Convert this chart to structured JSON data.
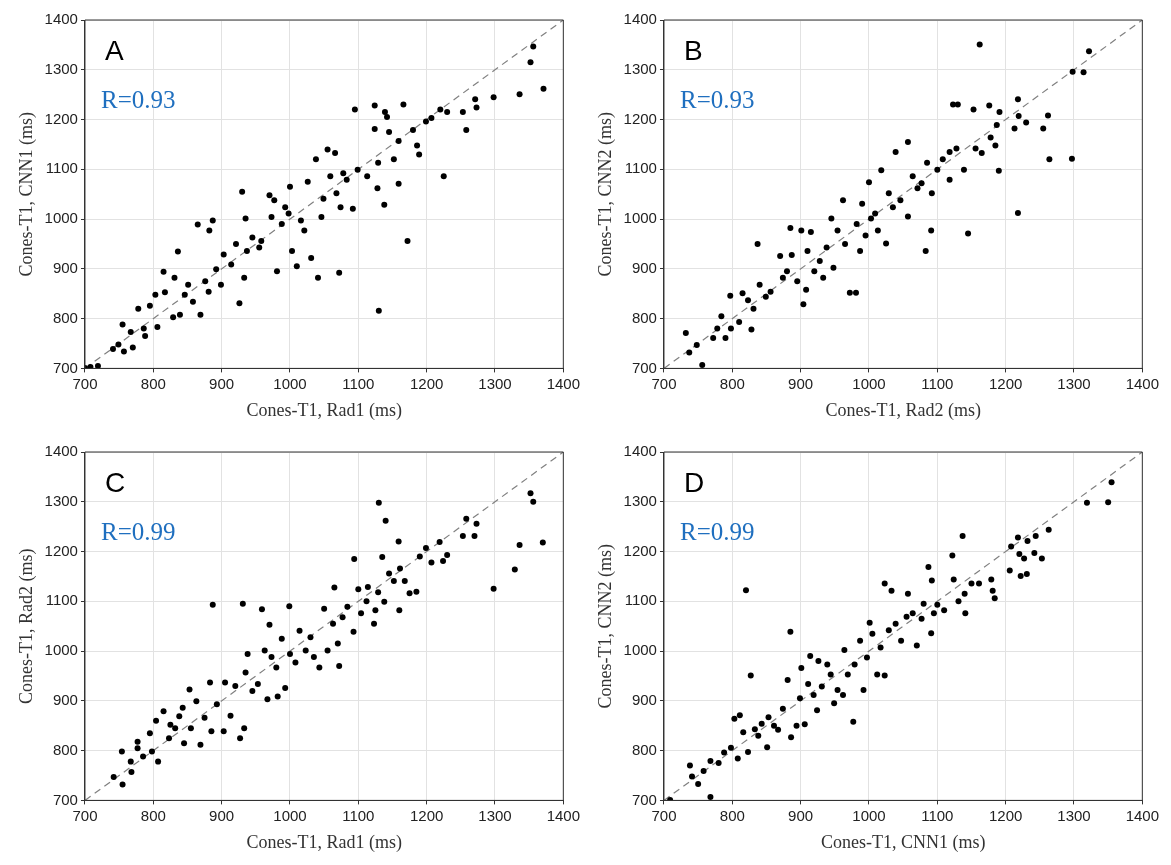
{
  "chart_data": [
    {
      "type": "scatter",
      "xlabel": "Cones-T1, Rad1 (ms)",
      "ylabel": "Cones-T1, CNN1 (ms)",
      "annotations": [
        "A",
        "R=0.93"
      ],
      "xlim": [
        700,
        1400
      ],
      "ylim": [
        700,
        1400
      ],
      "xticks": [
        700,
        800,
        900,
        1000,
        1100,
        1200,
        1300,
        1400
      ],
      "yticks": [
        700,
        800,
        900,
        1000,
        1100,
        1200,
        1300,
        1400
      ],
      "grid": true,
      "series": [
        {
          "color": "#000000",
          "marker": "circle",
          "x": [
            700,
            708,
            719,
            741,
            749,
            757,
            770,
            755,
            767,
            778,
            786,
            788,
            795,
            806,
            803,
            815,
            817,
            829,
            836,
            839,
            831,
            846,
            851,
            858,
            865,
            869,
            882,
            887,
            876,
            881,
            892,
            899,
            903,
            914,
            921,
            926,
            930,
            933,
            935,
            937,
            945,
            955,
            958,
            970,
            973,
            977,
            981,
            988,
            993,
            998,
            1000,
            1003,
            1010,
            1016,
            1021,
            1026,
            1031,
            1038,
            1041,
            1046,
            1049,
            1055,
            1059,
            1066,
            1068,
            1072,
            1074,
            1078,
            1083,
            1092,
            1095,
            1099,
            1113,
            1124,
            1124,
            1128,
            1130,
            1129,
            1138,
            1139,
            1142,
            1145,
            1152,
            1159,
            1159,
            1166,
            1172,
            1180,
            1186,
            1189,
            1199,
            1207,
            1220,
            1225,
            1230,
            1253,
            1258,
            1271,
            1273,
            1298,
            1336,
            1356,
            1352,
            1371
          ],
          "values": [
            701,
            703,
            705,
            739,
            748,
            734,
            742,
            788,
            773,
            820,
            780,
            765,
            826,
            783,
            848,
            894,
            853,
            803,
            935,
            808,
            882,
            848,
            868,
            834,
            989,
            808,
            977,
            997,
            875,
            854,
            899,
            868,
            929,
            909,
            950,
            831,
            1055,
            882,
            1001,
            936,
            963,
            943,
            956,
            1048,
            1004,
            1038,
            895,
            990,
            1024,
            1011,
            1065,
            936,
            905,
            997,
            977,
            1075,
            922,
            1120,
            882,
            1004,
            1041,
            1140,
            1086,
            1133,
            1052,
            892,
            1024,
            1092,
            1079,
            1021,
            1220,
            1099,
            1086,
            1228,
            1181,
            1062,
            816,
            1113,
            1029,
            1215,
            1205,
            1175,
            1120,
            1071,
            1157,
            1230,
            956,
            1179,
            1148,
            1130,
            1196,
            1203,
            1220,
            1086,
            1215,
            1215,
            1179,
            1241,
            1224,
            1245,
            1251,
            1347,
            1315,
            1262
          ]
        },
        {
          "type": "line",
          "color": "#808080",
          "marker": "none",
          "line_style": "dashed",
          "x": [
            700,
            1400
          ],
          "values": [
            700,
            1400
          ]
        }
      ]
    },
    {
      "type": "scatter",
      "xlabel": "Cones-T1, Rad2 (ms)",
      "ylabel": "Cones-T1, CNN2 (ms)",
      "annotations": [
        "B",
        "R=0.93"
      ],
      "xlim": [
        700,
        1400
      ],
      "ylim": [
        700,
        1400
      ],
      "xticks": [
        700,
        800,
        900,
        1000,
        1100,
        1200,
        1300,
        1400
      ],
      "yticks": [
        700,
        800,
        900,
        1000,
        1100,
        1200,
        1300,
        1400
      ],
      "grid": true,
      "series": [
        {
          "color": "#000000",
          "marker": "circle",
          "x": [
            732,
            737,
            748,
            756,
            772,
            778,
            784,
            790,
            797,
            798,
            810,
            815,
            823,
            828,
            831,
            837,
            840,
            849,
            856,
            870,
            874,
            880,
            885,
            887,
            895,
            901,
            904,
            908,
            910,
            915,
            920,
            928,
            933,
            938,
            945,
            948,
            954,
            962,
            965,
            972,
            981,
            982,
            987,
            990,
            995,
            1000,
            1003,
            1009,
            1013,
            1018,
            1025,
            1029,
            1035,
            1039,
            1046,
            1057,
            1057,
            1064,
            1071,
            1077,
            1083,
            1085,
            1091,
            1092,
            1100,
            1108,
            1118,
            1118,
            1123,
            1130,
            1128,
            1139,
            1145,
            1153,
            1156,
            1162,
            1165,
            1176,
            1178,
            1185,
            1187,
            1190,
            1191,
            1213,
            1218,
            1218,
            1219,
            1230,
            1255,
            1262,
            1264,
            1297,
            1298,
            1314,
            1322
          ],
          "values": [
            771,
            732,
            747,
            707,
            761,
            780,
            805,
            761,
            846,
            780,
            793,
            851,
            837,
            778,
            820,
            950,
            868,
            844,
            854,
            926,
            882,
            895,
            982,
            928,
            875,
            977,
            829,
            858,
            936,
            974,
            895,
            916,
            882,
            943,
            1001,
            902,
            977,
            1038,
            950,
            852,
            852,
            990,
            936,
            1031,
            967,
            1074,
            1001,
            1011,
            977,
            1098,
            951,
            1052,
            1024,
            1135,
            1038,
            1155,
            1005,
            1086,
            1062,
            1072,
            936,
            1113,
            977,
            1052,
            1099,
            1120,
            1135,
            1079,
            1230,
            1230,
            1142,
            1099,
            971,
            1220,
            1142,
            1351,
            1133,
            1228,
            1164,
            1148,
            1189,
            1097,
            1215,
            1182,
            1241,
            1012,
            1207,
            1194,
            1182,
            1208,
            1120,
            1121,
            1296,
            1295,
            1337
          ]
        },
        {
          "type": "line",
          "color": "#808080",
          "marker": "none",
          "line_style": "dashed",
          "x": [
            700,
            1400
          ],
          "values": [
            700,
            1400
          ]
        }
      ]
    },
    {
      "type": "scatter",
      "xlabel": "Cones-T1, Rad1 (ms)",
      "ylabel": "Cones-T1, Rad2 (ms)",
      "annotations": [
        "C",
        "R=0.99"
      ],
      "xlim": [
        700,
        1400
      ],
      "ylim": [
        700,
        1400
      ],
      "xticks": [
        700,
        800,
        900,
        1000,
        1100,
        1200,
        1300,
        1400
      ],
      "yticks": [
        700,
        800,
        900,
        1000,
        1100,
        1200,
        1300,
        1400
      ],
      "grid": true,
      "series": [
        {
          "color": "#000000",
          "marker": "circle",
          "x": [
            742,
            755,
            754,
            768,
            767,
            777,
            777,
            785,
            795,
            798,
            807,
            804,
            815,
            823,
            825,
            832,
            838,
            843,
            845,
            853,
            855,
            863,
            869,
            875,
            883,
            887,
            885,
            893,
            903,
            905,
            913,
            920,
            927,
            931,
            933,
            935,
            938,
            945,
            953,
            959,
            963,
            967,
            970,
            973,
            980,
            982,
            988,
            993,
            999,
            1000,
            1008,
            1014,
            1023,
            1030,
            1035,
            1043,
            1050,
            1055,
            1063,
            1065,
            1070,
            1072,
            1077,
            1084,
            1093,
            1094,
            1100,
            1104,
            1112,
            1114,
            1123,
            1125,
            1129,
            1130,
            1135,
            1138,
            1140,
            1145,
            1152,
            1159,
            1160,
            1161,
            1168,
            1175,
            1185,
            1190,
            1199,
            1207,
            1219,
            1224,
            1230,
            1253,
            1258,
            1270,
            1273,
            1298,
            1329,
            1336,
            1352,
            1356,
            1370
          ],
          "values": [
            747,
            732,
            798,
            757,
            778,
            818,
            805,
            788,
            835,
            798,
            778,
            860,
            879,
            825,
            852,
            845,
            869,
            886,
            815,
            923,
            845,
            899,
            812,
            866,
            937,
            1093,
            839,
            893,
            839,
            937,
            870,
            930,
            825,
            1095,
            845,
            957,
            994,
            920,
            934,
            1084,
            1001,
            903,
            1053,
            988,
            967,
            909,
            1025,
            926,
            1090,
            994,
            977,
            1041,
            1001,
            1028,
            988,
            967,
            1085,
            1001,
            1055,
            1128,
            1015,
            970,
            1068,
            1089,
            1039,
            1185,
            1124,
            1076,
            1100,
            1129,
            1055,
            1082,
            1118,
            1298,
            1189,
            1099,
            1262,
            1156,
            1141,
            1220,
            1082,
            1166,
            1141,
            1116,
            1119,
            1190,
            1207,
            1178,
            1219,
            1181,
            1193,
            1231,
            1266,
            1231,
            1256,
            1125,
            1164,
            1213,
            1317,
            1300,
            1218
          ]
        },
        {
          "type": "line",
          "color": "#808080",
          "marker": "none",
          "line_style": "dashed",
          "x": [
            700,
            1400
          ],
          "values": [
            700,
            1400
          ]
        }
      ]
    },
    {
      "type": "scatter",
      "xlabel": "Cones-T1, CNN1 (ms)",
      "ylabel": "Cones-T1, CNN2 (ms)",
      "annotations": [
        "D",
        "R=0.99"
      ],
      "xlim": [
        700,
        1400
      ],
      "ylim": [
        700,
        1400
      ],
      "xticks": [
        700,
        800,
        900,
        1000,
        1100,
        1200,
        1300,
        1400
      ],
      "yticks": [
        700,
        800,
        900,
        1000,
        1100,
        1200,
        1300,
        1400
      ],
      "grid": true,
      "series": [
        {
          "color": "#000000",
          "marker": "circle",
          "x": [
            709,
            738,
            741,
            750,
            758,
            768,
            768,
            780,
            788,
            798,
            803,
            808,
            811,
            816,
            820,
            823,
            827,
            833,
            838,
            843,
            851,
            853,
            861,
            867,
            874,
            881,
            885,
            886,
            894,
            899,
            901,
            906,
            911,
            914,
            919,
            924,
            926,
            931,
            939,
            944,
            949,
            954,
            964,
            962,
            969,
            977,
            979,
            987,
            992,
            997,
            1001,
            1005,
            1012,
            1017,
            1023,
            1023,
            1029,
            1033,
            1039,
            1047,
            1055,
            1057,
            1064,
            1070,
            1077,
            1080,
            1087,
            1091,
            1092,
            1095,
            1100,
            1110,
            1122,
            1124,
            1131,
            1137,
            1140,
            1141,
            1150,
            1161,
            1179,
            1181,
            1184,
            1206,
            1208,
            1218,
            1220,
            1222,
            1227,
            1232,
            1231,
            1242,
            1244,
            1253,
            1263,
            1319,
            1350,
            1355
          ],
          "values": [
            701,
            770,
            748,
            733,
            759,
            707,
            779,
            775,
            796,
            806,
            864,
            784,
            871,
            837,
            1122,
            797,
            951,
            843,
            830,
            854,
            807,
            867,
            850,
            842,
            884,
            942,
            1039,
            827,
            850,
            905,
            966,
            853,
            934,
            990,
            912,
            881,
            980,
            929,
            973,
            953,
            895,
            922,
            1002,
            912,
            953,
            858,
            973,
            1021,
            922,
            987,
            1057,
            1035,
            953,
            1007,
            951,
            1136,
            1042,
            1121,
            1055,
            1021,
            1069,
            1115,
            1076,
            1011,
            1065,
            1095,
            1169,
            1036,
            1142,
            1076,
            1093,
            1082,
            1192,
            1144,
            1100,
            1231,
            1115,
            1076,
            1136,
            1136,
            1144,
            1121,
            1106,
            1162,
            1210,
            1228,
            1195,
            1151,
            1186,
            1221,
            1155,
            1197,
            1231,
            1186,
            1244,
            1298,
            1299,
            1339
          ]
        },
        {
          "type": "line",
          "color": "#808080",
          "marker": "none",
          "line_style": "dashed",
          "x": [
            700,
            1400
          ],
          "values": [
            700,
            1400
          ]
        }
      ]
    }
  ]
}
